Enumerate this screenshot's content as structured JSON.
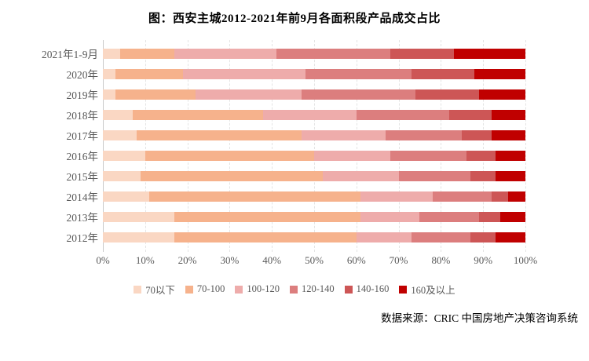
{
  "title": "图：西安主城2012-2021年前9月各面积段产品成交占比",
  "source": "数据来源：CRIC 中国房地产决策咨询系统",
  "chart_data": {
    "type": "bar",
    "orientation": "horizontal",
    "stacked": true,
    "unit": "percent",
    "grid": "vertical-dashed",
    "legend_position": "bottom",
    "xlim": [
      0,
      100
    ],
    "x_ticks": [
      "0%",
      "10%",
      "20%",
      "30%",
      "40%",
      "50%",
      "60%",
      "70%",
      "80%",
      "90%",
      "100%"
    ],
    "categories": [
      "2021年1-9月",
      "2020年",
      "2019年",
      "2018年",
      "2017年",
      "2016年",
      "2015年",
      "2014年",
      "2013年",
      "2012年"
    ],
    "series": [
      {
        "name": "70以下",
        "color": "#fad7c3",
        "values": [
          4,
          3,
          3,
          7,
          8,
          10,
          9,
          11,
          17,
          17
        ]
      },
      {
        "name": "70-100",
        "color": "#f6b28c",
        "values": [
          13,
          16,
          19,
          31,
          39,
          40,
          43,
          50,
          44,
          43
        ]
      },
      {
        "name": "100-120",
        "color": "#eeacab",
        "values": [
          24,
          29,
          25,
          22,
          20,
          18,
          18,
          17,
          14,
          13
        ]
      },
      {
        "name": "120-140",
        "color": "#dc7e7e",
        "values": [
          27,
          25,
          27,
          22,
          18,
          18,
          17,
          14,
          14,
          14
        ]
      },
      {
        "name": "140-160",
        "color": "#cd5656",
        "values": [
          15,
          15,
          15,
          10,
          7,
          7,
          6,
          4,
          5,
          6
        ]
      },
      {
        "name": "160及以上",
        "color": "#c00000",
        "values": [
          17,
          12,
          11,
          8,
          8,
          7,
          7,
          4,
          6,
          7
        ]
      }
    ]
  }
}
